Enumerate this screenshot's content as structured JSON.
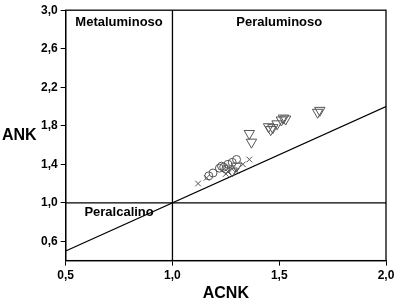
{
  "chart_data": {
    "type": "scatter",
    "x_label": "ACNK",
    "y_label": "ANK",
    "xlim": [
      0.5,
      2.0
    ],
    "ylim": [
      0.4,
      3.0
    ],
    "xticks": [
      {
        "value": 0.5,
        "label": "0,5"
      },
      {
        "value": 1.0,
        "label": "1,0"
      },
      {
        "value": 1.5,
        "label": "1,5"
      },
      {
        "value": 2.0,
        "label": "2,0"
      }
    ],
    "yticks": [
      {
        "value": 0.6,
        "label": "0,6"
      },
      {
        "value": 1.0,
        "label": "1,0"
      },
      {
        "value": 1.4,
        "label": "1,4"
      },
      {
        "value": 1.8,
        "label": "1,8"
      },
      {
        "value": 2.2,
        "label": "2,2"
      },
      {
        "value": 2.6,
        "label": "2,6"
      },
      {
        "value": 3.0,
        "label": "3,0"
      }
    ],
    "grid": false,
    "series": [
      {
        "color": "#555555",
        "marker": "circle",
        "x": [
          1.17,
          1.19,
          1.22,
          1.23,
          1.24,
          1.26,
          1.28,
          1.3,
          1.25
        ],
        "y": [
          1.28,
          1.31,
          1.36,
          1.38,
          1.37,
          1.4,
          1.42,
          1.45,
          1.35
        ]
      },
      {
        "color": "#555555",
        "marker": "cross",
        "x": [
          1.12,
          1.16,
          1.26,
          1.28,
          1.3,
          1.33,
          1.36,
          1.25
        ],
        "y": [
          1.2,
          1.26,
          1.32,
          1.35,
          1.33,
          1.4,
          1.45,
          1.3
        ]
      },
      {
        "color": "#555555",
        "marker": "triangle_down",
        "x": [
          1.36,
          1.37,
          1.45,
          1.47,
          1.49,
          1.51,
          1.52,
          1.53,
          1.68,
          1.69,
          1.3,
          1.28,
          1.46
        ],
        "y": [
          1.72,
          1.63,
          1.79,
          1.78,
          1.82,
          1.86,
          1.88,
          1.87,
          1.94,
          1.96,
          1.38,
          1.33,
          1.76
        ]
      }
    ],
    "lines": [
      {
        "x": [
          1.0,
          1.0
        ],
        "y": [
          0.4,
          3.0
        ]
      },
      {
        "x": [
          0.5,
          2.0
        ],
        "y": [
          1.0,
          1.0
        ]
      },
      {
        "x": [
          0.5,
          2.0
        ],
        "y": [
          0.5,
          2.0
        ]
      }
    ],
    "annotations": [
      {
        "text": "Metaluminoso",
        "x": 0.75,
        "y": 2.87
      },
      {
        "text": "Peraluminoso",
        "x": 1.5,
        "y": 2.87
      },
      {
        "text": "Peralcalino",
        "x": 0.75,
        "y": 0.9
      }
    ]
  }
}
